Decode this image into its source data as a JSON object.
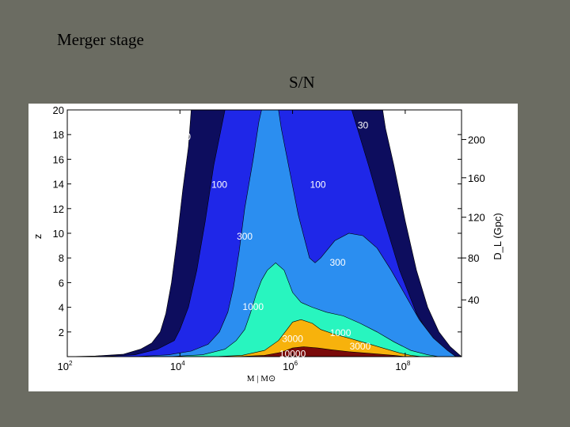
{
  "slide": {
    "title": "Merger stage"
  },
  "chart_data": {
    "type": "contour",
    "title": "S/N",
    "xlabel": "M | M⊙",
    "ylabel": "z",
    "y2label": "D_L (Gpc)",
    "x_scale": "log",
    "xlim": [
      100,
      1000000000
    ],
    "ylim": [
      0,
      20
    ],
    "x_ticks": [
      {
        "value": 100,
        "base": "10",
        "exp": "2"
      },
      {
        "value": 10000,
        "base": "10",
        "exp": "4"
      },
      {
        "value": 1000000,
        "base": "10",
        "exp": "6"
      },
      {
        "value": 100000000,
        "base": "10",
        "exp": "8"
      }
    ],
    "y_ticks": [
      2,
      4,
      6,
      8,
      10,
      12,
      14,
      16,
      18,
      20
    ],
    "y2_ticks": [
      {
        "label": "40",
        "z": 4.6
      },
      {
        "label": "80",
        "z": 8.0
      },
      {
        "label": "120",
        "z": 11.3
      },
      {
        "label": "160",
        "z": 14.5
      },
      {
        "label": "200",
        "z": 17.6
      }
    ],
    "levels": [
      {
        "sn": 30,
        "color": "#0d0d5e"
      },
      {
        "sn": 100,
        "color": "#1f27e8"
      },
      {
        "sn": 300,
        "color": "#2b8ef0"
      },
      {
        "sn": 1000,
        "color": "#28f5bf"
      },
      {
        "sn": 3000,
        "color": "#f7b20c"
      },
      {
        "sn": 10000,
        "color": "#7a0a0a"
      }
    ],
    "contour_labels": [
      {
        "text": "30",
        "log_m": 4.1,
        "z": 17.9
      },
      {
        "text": "30",
        "log_m": 7.25,
        "z": 18.8
      },
      {
        "text": "100",
        "log_m": 4.7,
        "z": 14.0
      },
      {
        "text": "100",
        "log_m": 6.45,
        "z": 14.0
      },
      {
        "text": "300",
        "log_m": 5.15,
        "z": 9.8
      },
      {
        "text": "300",
        "log_m": 6.8,
        "z": 7.7
      },
      {
        "text": "1000",
        "log_m": 5.3,
        "z": 4.1
      },
      {
        "text": "1000",
        "log_m": 6.85,
        "z": 2.0
      },
      {
        "text": "3000",
        "log_m": 6.0,
        "z": 1.5
      },
      {
        "text": "3000",
        "log_m": 7.2,
        "z": 0.9
      },
      {
        "text": "10000",
        "log_m": 6.0,
        "z": 0.3
      }
    ],
    "boundaries": {
      "30": [
        [
          2.0,
          0
        ],
        [
          2.5,
          0.05
        ],
        [
          3.0,
          0.2
        ],
        [
          3.3,
          0.6
        ],
        [
          3.5,
          1.1
        ],
        [
          3.65,
          2.0
        ],
        [
          3.75,
          3.5
        ],
        [
          3.85,
          6.0
        ],
        [
          3.95,
          9.5
        ],
        [
          4.05,
          13.5
        ],
        [
          4.15,
          17.0
        ],
        [
          4.2,
          20
        ],
        [
          7.6,
          20
        ],
        [
          7.65,
          18.5
        ],
        [
          7.8,
          15.5
        ],
        [
          8.0,
          11.0
        ],
        [
          8.2,
          7.0
        ],
        [
          8.4,
          4.0
        ],
        [
          8.6,
          2.0
        ],
        [
          8.8,
          0.8
        ],
        [
          8.95,
          0.2
        ],
        [
          9.0,
          0
        ]
      ],
      "100": [
        [
          2.6,
          0
        ],
        [
          3.2,
          0.15
        ],
        [
          3.6,
          0.6
        ],
        [
          3.9,
          1.3
        ],
        [
          4.0,
          2.2
        ],
        [
          4.15,
          4.0
        ],
        [
          4.3,
          7.0
        ],
        [
          4.45,
          11.0
        ],
        [
          4.6,
          15.5
        ],
        [
          4.8,
          20
        ],
        [
          7.05,
          20
        ],
        [
          7.15,
          18.5
        ],
        [
          7.35,
          15.5
        ],
        [
          7.6,
          11.5
        ],
        [
          7.9,
          7.0
        ],
        [
          8.2,
          3.5
        ],
        [
          8.45,
          1.6
        ],
        [
          8.7,
          0.5
        ],
        [
          8.9,
          0
        ]
      ],
      "300": [
        [
          3.2,
          0
        ],
        [
          3.8,
          0.15
        ],
        [
          4.2,
          0.45
        ],
        [
          4.5,
          1.0
        ],
        [
          4.7,
          2.0
        ],
        [
          4.85,
          3.6
        ],
        [
          4.95,
          5.6
        ],
        [
          5.05,
          8.5
        ],
        [
          5.15,
          12.0
        ],
        [
          5.3,
          16.0
        ],
        [
          5.4,
          19.0
        ],
        [
          5.45,
          20
        ],
        [
          5.75,
          20
        ],
        [
          5.8,
          18.5
        ],
        [
          5.95,
          15.0
        ],
        [
          6.1,
          11.5
        ],
        [
          6.3,
          8.0
        ],
        [
          6.4,
          7.6
        ],
        [
          6.5,
          8.0
        ],
        [
          6.75,
          9.4
        ],
        [
          7.0,
          10.0
        ],
        [
          7.25,
          9.8
        ],
        [
          7.5,
          8.8
        ],
        [
          7.75,
          7.0
        ],
        [
          8.0,
          5.0
        ],
        [
          8.25,
          3.0
        ],
        [
          8.5,
          1.5
        ],
        [
          8.75,
          0.5
        ],
        [
          8.9,
          0
        ]
      ],
      "1000": [
        [
          3.8,
          0
        ],
        [
          4.4,
          0.15
        ],
        [
          4.8,
          0.6
        ],
        [
          5.0,
          1.3
        ],
        [
          5.15,
          2.2
        ],
        [
          5.25,
          3.5
        ],
        [
          5.35,
          5.0
        ],
        [
          5.45,
          6.2
        ],
        [
          5.55,
          7.0
        ],
        [
          5.7,
          7.6
        ],
        [
          5.85,
          7.0
        ],
        [
          6.0,
          5.2
        ],
        [
          6.15,
          4.4
        ],
        [
          6.35,
          4.0
        ],
        [
          6.6,
          3.6
        ],
        [
          6.9,
          3.3
        ],
        [
          7.2,
          2.7
        ],
        [
          7.5,
          2.0
        ],
        [
          7.8,
          1.2
        ],
        [
          8.1,
          0.5
        ],
        [
          8.4,
          0.15
        ],
        [
          8.6,
          0
        ]
      ],
      "3000": [
        [
          4.6,
          0
        ],
        [
          5.1,
          0.1
        ],
        [
          5.5,
          0.5
        ],
        [
          5.75,
          1.3
        ],
        [
          5.9,
          2.2
        ],
        [
          6.0,
          2.8
        ],
        [
          6.15,
          3.0
        ],
        [
          6.35,
          2.7
        ],
        [
          6.5,
          2.2
        ],
        [
          6.75,
          1.8
        ],
        [
          7.0,
          1.5
        ],
        [
          7.3,
          1.1
        ],
        [
          7.6,
          0.7
        ],
        [
          7.9,
          0.3
        ],
        [
          8.1,
          0.1
        ],
        [
          8.3,
          0
        ]
      ],
      "10000": [
        [
          5.0,
          0
        ],
        [
          5.5,
          0.1
        ],
        [
          5.8,
          0.35
        ],
        [
          6.0,
          0.7
        ],
        [
          6.2,
          0.8
        ],
        [
          6.45,
          0.7
        ],
        [
          6.7,
          0.55
        ],
        [
          7.0,
          0.4
        ],
        [
          7.4,
          0.25
        ],
        [
          7.8,
          0.1
        ],
        [
          8.0,
          0
        ]
      ]
    }
  }
}
